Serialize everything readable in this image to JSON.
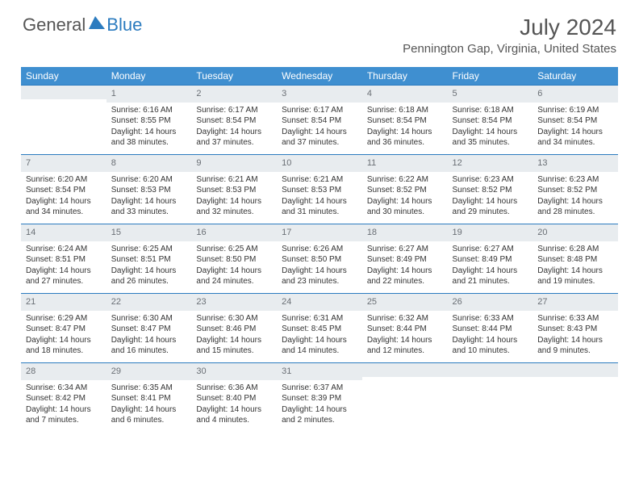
{
  "logo": {
    "text1": "General",
    "text2": "Blue",
    "triangle_color": "#2b7bbf"
  },
  "title": "July 2024",
  "location": "Pennington Gap, Virginia, United States",
  "colors": {
    "header_bg": "#3f8fd0",
    "header_text": "#ffffff",
    "daynum_bg": "#e8ecef",
    "daynum_text": "#6a6f75",
    "rule": "#2b7bbf",
    "body_text": "#333333"
  },
  "weekdays": [
    "Sunday",
    "Monday",
    "Tuesday",
    "Wednesday",
    "Thursday",
    "Friday",
    "Saturday"
  ],
  "weeks": [
    [
      null,
      {
        "n": "1",
        "sr": "6:16 AM",
        "ss": "8:55 PM",
        "dl": "14 hours and 38 minutes."
      },
      {
        "n": "2",
        "sr": "6:17 AM",
        "ss": "8:54 PM",
        "dl": "14 hours and 37 minutes."
      },
      {
        "n": "3",
        "sr": "6:17 AM",
        "ss": "8:54 PM",
        "dl": "14 hours and 37 minutes."
      },
      {
        "n": "4",
        "sr": "6:18 AM",
        "ss": "8:54 PM",
        "dl": "14 hours and 36 minutes."
      },
      {
        "n": "5",
        "sr": "6:18 AM",
        "ss": "8:54 PM",
        "dl": "14 hours and 35 minutes."
      },
      {
        "n": "6",
        "sr": "6:19 AM",
        "ss": "8:54 PM",
        "dl": "14 hours and 34 minutes."
      }
    ],
    [
      {
        "n": "7",
        "sr": "6:20 AM",
        "ss": "8:54 PM",
        "dl": "14 hours and 34 minutes."
      },
      {
        "n": "8",
        "sr": "6:20 AM",
        "ss": "8:53 PM",
        "dl": "14 hours and 33 minutes."
      },
      {
        "n": "9",
        "sr": "6:21 AM",
        "ss": "8:53 PM",
        "dl": "14 hours and 32 minutes."
      },
      {
        "n": "10",
        "sr": "6:21 AM",
        "ss": "8:53 PM",
        "dl": "14 hours and 31 minutes."
      },
      {
        "n": "11",
        "sr": "6:22 AM",
        "ss": "8:52 PM",
        "dl": "14 hours and 30 minutes."
      },
      {
        "n": "12",
        "sr": "6:23 AM",
        "ss": "8:52 PM",
        "dl": "14 hours and 29 minutes."
      },
      {
        "n": "13",
        "sr": "6:23 AM",
        "ss": "8:52 PM",
        "dl": "14 hours and 28 minutes."
      }
    ],
    [
      {
        "n": "14",
        "sr": "6:24 AM",
        "ss": "8:51 PM",
        "dl": "14 hours and 27 minutes."
      },
      {
        "n": "15",
        "sr": "6:25 AM",
        "ss": "8:51 PM",
        "dl": "14 hours and 26 minutes."
      },
      {
        "n": "16",
        "sr": "6:25 AM",
        "ss": "8:50 PM",
        "dl": "14 hours and 24 minutes."
      },
      {
        "n": "17",
        "sr": "6:26 AM",
        "ss": "8:50 PM",
        "dl": "14 hours and 23 minutes."
      },
      {
        "n": "18",
        "sr": "6:27 AM",
        "ss": "8:49 PM",
        "dl": "14 hours and 22 minutes."
      },
      {
        "n": "19",
        "sr": "6:27 AM",
        "ss": "8:49 PM",
        "dl": "14 hours and 21 minutes."
      },
      {
        "n": "20",
        "sr": "6:28 AM",
        "ss": "8:48 PM",
        "dl": "14 hours and 19 minutes."
      }
    ],
    [
      {
        "n": "21",
        "sr": "6:29 AM",
        "ss": "8:47 PM",
        "dl": "14 hours and 18 minutes."
      },
      {
        "n": "22",
        "sr": "6:30 AM",
        "ss": "8:47 PM",
        "dl": "14 hours and 16 minutes."
      },
      {
        "n": "23",
        "sr": "6:30 AM",
        "ss": "8:46 PM",
        "dl": "14 hours and 15 minutes."
      },
      {
        "n": "24",
        "sr": "6:31 AM",
        "ss": "8:45 PM",
        "dl": "14 hours and 14 minutes."
      },
      {
        "n": "25",
        "sr": "6:32 AM",
        "ss": "8:44 PM",
        "dl": "14 hours and 12 minutes."
      },
      {
        "n": "26",
        "sr": "6:33 AM",
        "ss": "8:44 PM",
        "dl": "14 hours and 10 minutes."
      },
      {
        "n": "27",
        "sr": "6:33 AM",
        "ss": "8:43 PM",
        "dl": "14 hours and 9 minutes."
      }
    ],
    [
      {
        "n": "28",
        "sr": "6:34 AM",
        "ss": "8:42 PM",
        "dl": "14 hours and 7 minutes."
      },
      {
        "n": "29",
        "sr": "6:35 AM",
        "ss": "8:41 PM",
        "dl": "14 hours and 6 minutes."
      },
      {
        "n": "30",
        "sr": "6:36 AM",
        "ss": "8:40 PM",
        "dl": "14 hours and 4 minutes."
      },
      {
        "n": "31",
        "sr": "6:37 AM",
        "ss": "8:39 PM",
        "dl": "14 hours and 2 minutes."
      },
      null,
      null,
      null
    ]
  ],
  "labels": {
    "sunrise": "Sunrise: ",
    "sunset": "Sunset: ",
    "daylight": "Daylight: "
  }
}
